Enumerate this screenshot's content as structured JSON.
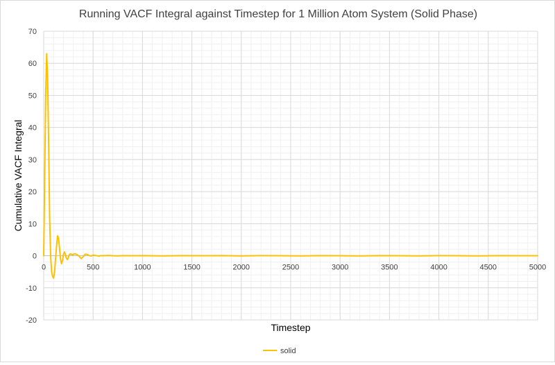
{
  "chart_data": {
    "type": "line",
    "title": "Running VACF Integral against Timestep for 1 Million Atom System (Solid Phase)",
    "xlabel": "Timestep",
    "ylabel": "Cumulative VACF Integral",
    "xlim": [
      0,
      5000
    ],
    "ylim": [
      -20,
      70
    ],
    "x_ticks": [
      0,
      500,
      1000,
      1500,
      2000,
      2500,
      3000,
      3500,
      4000,
      4500,
      5000
    ],
    "y_ticks": [
      -20,
      -10,
      0,
      10,
      20,
      30,
      40,
      50,
      60,
      70
    ],
    "grid": true,
    "minor_grid": true,
    "legend_position": "bottom",
    "series": [
      {
        "name": "solid",
        "color": "#ffc000",
        "x": [
          0,
          10,
          20,
          30,
          40,
          50,
          60,
          70,
          80,
          90,
          100,
          110,
          120,
          130,
          140,
          150,
          160,
          170,
          180,
          190,
          200,
          210,
          220,
          230,
          240,
          250,
          260,
          270,
          280,
          290,
          300,
          320,
          340,
          360,
          380,
          400,
          420,
          440,
          460,
          480,
          500,
          520,
          540,
          560,
          580,
          600,
          650,
          700,
          750,
          800,
          900,
          1000,
          1200,
          1400,
          1600,
          1800,
          2000,
          2200,
          2400,
          2600,
          2800,
          3000,
          3200,
          3400,
          3600,
          3800,
          4000,
          4200,
          4400,
          4600,
          4800,
          5000
        ],
        "values": [
          0,
          25,
          50,
          63,
          55,
          35,
          12,
          0,
          -5,
          -6.5,
          -7,
          -5,
          -1,
          3,
          6.2,
          5.5,
          2.5,
          -1,
          -2.5,
          -1.5,
          0.5,
          1.2,
          0.3,
          -0.8,
          -1.2,
          -0.5,
          0.4,
          0.6,
          0.5,
          0.2,
          0.5,
          0.6,
          0.3,
          -0.2,
          -0.9,
          -0.3,
          0.5,
          0.4,
          0.1,
          -0.1,
          0.2,
          0.1,
          0.0,
          -0.1,
          0.05,
          0.0,
          0.1,
          0.0,
          -0.05,
          0.05,
          0.0,
          0.05,
          -0.05,
          0.05,
          0.0,
          0.05,
          -0.05,
          0.05,
          0.0,
          -0.05,
          0.05,
          0.0,
          -0.05,
          0.05,
          0.0,
          -0.05,
          0.05,
          0.0,
          -0.05,
          0.05,
          0.0,
          0.0
        ]
      }
    ]
  }
}
